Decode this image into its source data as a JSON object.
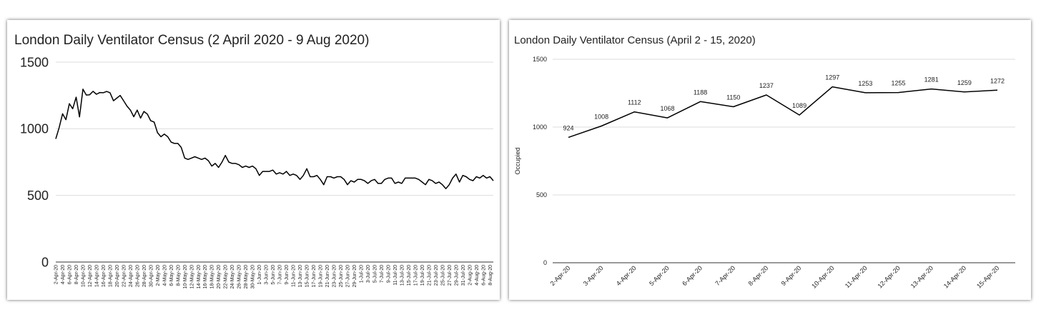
{
  "chart_data": [
    {
      "type": "line",
      "title": "London Daily Ventilator Census (2 April 2020 - 9 Aug 2020)",
      "categories": [
        "2-Apr-20",
        null,
        "4-Apr-20",
        null,
        "6-Apr-20",
        null,
        "8-Apr-20",
        null,
        "10-Apr-20",
        null,
        "12-Apr-20",
        null,
        "14-Apr-20",
        null,
        "16-Apr-20",
        null,
        "18-Apr-20",
        null,
        "20-Apr-20",
        null,
        "22-Apr-20",
        null,
        "24-Apr-20",
        null,
        "26-Apr-20",
        null,
        "28-Apr-20",
        null,
        "30-Apr-20",
        null,
        "2-May-20",
        null,
        "4-May-20",
        null,
        "6-May-20",
        null,
        "8-May-20",
        null,
        "10-May-20",
        null,
        "12-May-20",
        null,
        "14-May-20",
        null,
        "16-May-20",
        null,
        "18-May-20",
        null,
        "20-May-20",
        null,
        "22-May-20",
        null,
        "24-May-20",
        null,
        "26-May-20",
        null,
        "28-May-20",
        null,
        "30-May-20",
        null,
        "1-Jun-20",
        null,
        "3-Jun-20",
        null,
        "5-Jun-20",
        null,
        "7-Jun-20",
        null,
        "9-Jun-20",
        null,
        "11-Jun-20",
        null,
        "13-Jun-20",
        null,
        "15-Jun-20",
        null,
        "17-Jun-20",
        null,
        "19-Jun-20",
        null,
        "21-Jun-20",
        null,
        "23-Jun-20",
        null,
        "25-Jun-20",
        null,
        "27-Jun-20",
        null,
        "29-Jun-20",
        null,
        "1-Jul-20",
        null,
        "3-Jul-20",
        null,
        "5-Jul-20",
        null,
        "7-Jul-20",
        null,
        "9-Jul-20",
        null,
        "11-Jul-20",
        null,
        "13-Jul-20",
        null,
        "15-Jul-20",
        null,
        "17-Jul-20",
        null,
        "19-Jul-20",
        null,
        "21-Jul-20",
        null,
        "23-Jul-20",
        null,
        "25-Jul-20",
        null,
        "27-Jul-20",
        null,
        "29-Jul-20",
        null,
        "31-Jul-20",
        null,
        "2-Aug-20",
        null,
        "4-Aug-20",
        null,
        "6-Aug-20",
        null,
        "8-Aug-20",
        null
      ],
      "values": [
        924,
        1008,
        1112,
        1068,
        1188,
        1150,
        1237,
        1089,
        1297,
        1253,
        1255,
        1281,
        1259,
        1272,
        1270,
        1280,
        1270,
        1210,
        1230,
        1250,
        1210,
        1170,
        1140,
        1090,
        1140,
        1080,
        1130,
        1110,
        1060,
        1050,
        970,
        940,
        960,
        940,
        900,
        890,
        890,
        860,
        780,
        770,
        780,
        790,
        780,
        770,
        780,
        760,
        720,
        740,
        710,
        750,
        800,
        750,
        740,
        740,
        730,
        710,
        720,
        710,
        720,
        700,
        650,
        680,
        680,
        680,
        690,
        660,
        670,
        660,
        680,
        650,
        660,
        650,
        620,
        650,
        700,
        640,
        640,
        650,
        620,
        580,
        640,
        640,
        630,
        640,
        640,
        620,
        580,
        610,
        600,
        620,
        620,
        610,
        590,
        610,
        620,
        590,
        590,
        620,
        630,
        630,
        590,
        600,
        590,
        630,
        630,
        630,
        630,
        620,
        600,
        580,
        620,
        610,
        590,
        600,
        580,
        550,
        580,
        630,
        660,
        600,
        650,
        640,
        620,
        610,
        640,
        630,
        650,
        630,
        640,
        610
      ],
      "color": "#000000",
      "ylim": [
        0,
        1500
      ],
      "yticks": [
        0,
        500,
        1000,
        1500
      ],
      "grid": true
    },
    {
      "type": "line",
      "title": "London Daily Ventilator Census (April 2 - 15, 2020)",
      "y_label": "Occupied",
      "categories": [
        "2-Apr-20",
        "3-Apr-20",
        "4-Apr-20",
        "5-Apr-20",
        "6-Apr-20",
        "7-Apr-20",
        "8-Apr-20",
        "9-Apr-20",
        "10-Apr-20",
        "11-Apr-20",
        "12-Apr-20",
        "13-Apr-20",
        "14-Apr-20",
        "15-Apr-20"
      ],
      "values": [
        924,
        1008,
        1112,
        1068,
        1188,
        1150,
        1237,
        1089,
        1297,
        1253,
        1255,
        1281,
        1259,
        1272
      ],
      "color": "#000000",
      "ylim": [
        0,
        1500
      ],
      "yticks": [
        0,
        500,
        1000,
        1500
      ],
      "grid": true
    }
  ]
}
